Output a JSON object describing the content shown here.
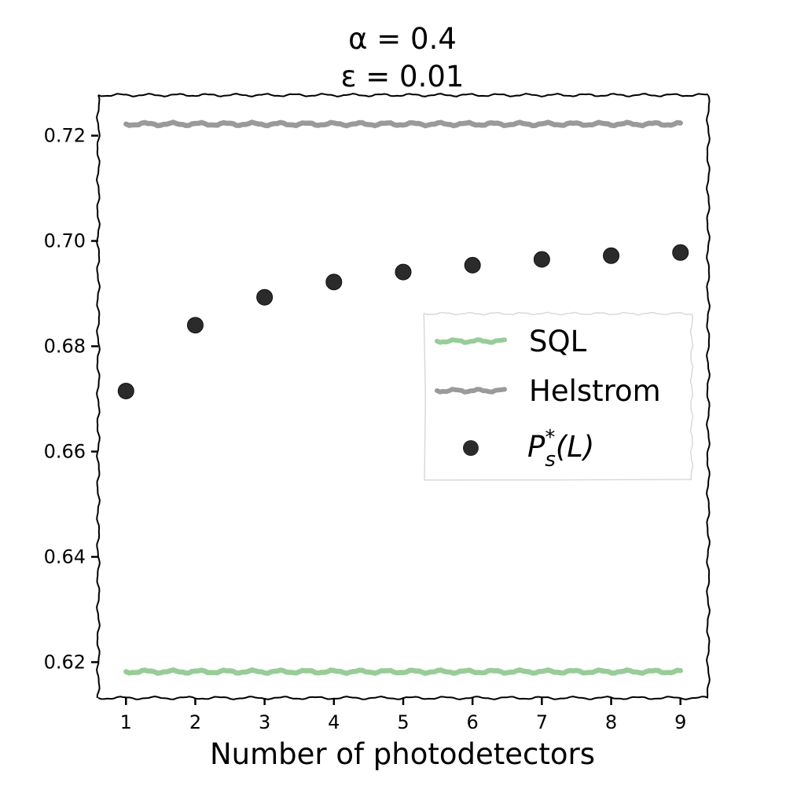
{
  "chart_data": {
    "type": "line",
    "title_lines": [
      "α = 0.4",
      "ε = 0.01"
    ],
    "xlabel": "Number of photodetectors",
    "ylabel": "",
    "x_ticks": [
      1,
      2,
      3,
      4,
      5,
      6,
      7,
      8,
      9
    ],
    "x_tick_labels": [
      "1",
      "2",
      "3",
      "4",
      "5",
      "6",
      "7",
      "8",
      "9"
    ],
    "y_ticks": [
      0.62,
      0.64,
      0.66,
      0.68,
      0.7,
      0.72
    ],
    "y_tick_labels": [
      "0.62",
      "0.64",
      "0.66",
      "0.68",
      "0.70",
      "0.72"
    ],
    "xlim": [
      0.6,
      9.4
    ],
    "ylim": [
      0.6132,
      0.7277
    ],
    "grid": false,
    "legend_position": "center-right",
    "series": [
      {
        "name": "SQL",
        "kind": "line",
        "color": "#98cc98",
        "x": [
          1,
          9
        ],
        "y": [
          0.6182,
          0.6182
        ]
      },
      {
        "name": "Helstrom",
        "kind": "line",
        "color": "#9a9a9a",
        "x": [
          1,
          9
        ],
        "y": [
          0.7222,
          0.7222
        ]
      },
      {
        "name": "P_s^*(L)",
        "kind": "scatter",
        "color": "#2b2b2b",
        "x": [
          1,
          2,
          3,
          4,
          5,
          6,
          7,
          8,
          9
        ],
        "y": [
          0.6715,
          0.684,
          0.6893,
          0.6922,
          0.6941,
          0.6954,
          0.6965,
          0.6972,
          0.6978
        ]
      }
    ],
    "legend": {
      "labels": [
        "SQL",
        "Helstrom"
      ],
      "math_label": {
        "base": "P",
        "sub": "s",
        "sup": "*",
        "arg": "(L)"
      }
    }
  }
}
